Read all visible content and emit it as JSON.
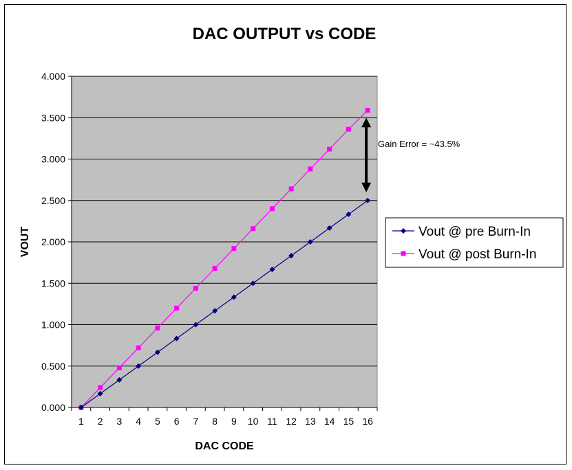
{
  "chart_data": {
    "type": "line",
    "title": "DAC OUTPUT vs CODE",
    "xlabel": "DAC CODE",
    "ylabel": "VOUT",
    "categories": [
      "1",
      "2",
      "3",
      "4",
      "5",
      "6",
      "7",
      "8",
      "9",
      "10",
      "11",
      "12",
      "13",
      "14",
      "15",
      "16"
    ],
    "ylim": [
      0,
      4.0
    ],
    "yticks": [
      "0.000",
      "0.500",
      "1.000",
      "1.500",
      "2.000",
      "2.500",
      "3.000",
      "3.500",
      "4.000"
    ],
    "grid": true,
    "plot_background": "#c0c0c0",
    "legend_position": "right",
    "series": [
      {
        "name": "Vout @ pre Burn-In",
        "color": "#000080",
        "marker": "diamond",
        "values": [
          0,
          0.167,
          0.333,
          0.5,
          0.667,
          0.833,
          1.0,
          1.167,
          1.333,
          1.5,
          1.667,
          1.833,
          2.0,
          2.167,
          2.333,
          2.5
        ]
      },
      {
        "name": "Vout @ post Burn-In",
        "color": "#ff00ff",
        "marker": "square",
        "values": [
          0,
          0.24,
          0.48,
          0.72,
          0.96,
          1.2,
          1.44,
          1.68,
          1.92,
          2.16,
          2.4,
          2.64,
          2.88,
          3.12,
          3.36,
          3.59
        ]
      }
    ],
    "annotations": [
      {
        "text": "Gain Error = ~43.5%",
        "from_value": 3.5,
        "to_value": 2.6,
        "at_category": "16",
        "arrow": "double"
      }
    ]
  }
}
